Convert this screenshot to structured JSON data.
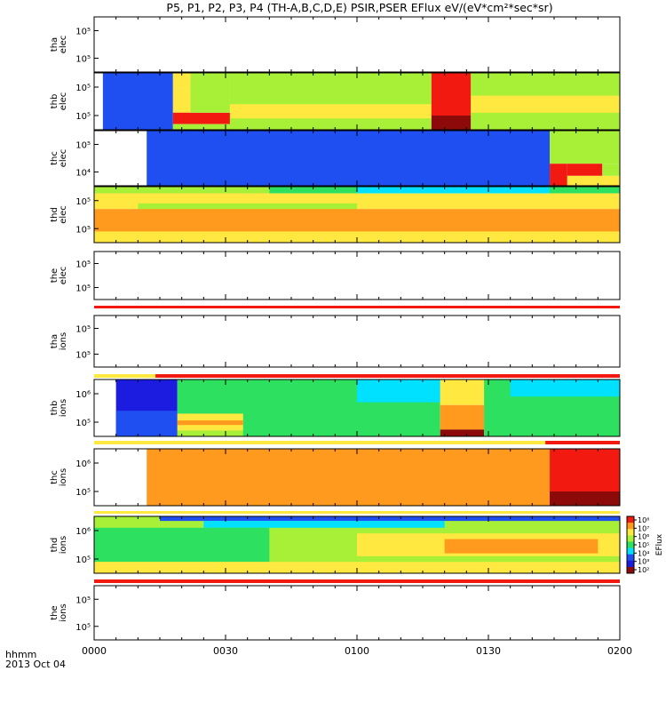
{
  "title": "P5, P1, P2, P3, P4 (TH-A,B,C,D,E) PSIR,PSER EFlux eV/(eV*cm²*sec*sr)",
  "footer": {
    "format_label": "hhmm",
    "date_label": "2013 Oct 04"
  },
  "colors": {
    "dark_blue": "#1c1ce0",
    "blue": "#1f4ff0",
    "cyan": "#00e0ff",
    "green": "#2ee060",
    "lgreen": "#a8f038",
    "yellow": "#ffe840",
    "orange": "#ff9a1e",
    "red": "#f21a10",
    "dred": "#8c0a0a"
  },
  "chart_data": {
    "type": "heatmap",
    "title": "P5, P1, P2, P3, P4 (TH-A,B,C,D,E) PSIR,PSER EFlux eV/(eV*cm²*sec*sr)",
    "x_ticks": [
      "0000",
      "0030",
      "0100",
      "0130",
      "0200"
    ],
    "x_range_minutes": [
      0,
      120
    ],
    "y_scale": "log",
    "colorbar": {
      "label": "EFlux",
      "ticks": [
        "10⁸",
        "10⁷",
        "10⁶",
        "10⁵",
        "10⁴",
        "10³",
        "10²"
      ]
    },
    "panels": [
      {
        "probe": "tha",
        "species": "elec",
        "y_ticks": [
          "10⁵",
          "10⁵"
        ],
        "data": "none"
      },
      {
        "probe": "thb",
        "species": "elec",
        "y_ticks": [
          "10⁵",
          "10⁵"
        ],
        "data": "spectrogram"
      },
      {
        "probe": "thc",
        "species": "elec",
        "y_ticks": [
          "10⁵",
          "10⁴"
        ],
        "data": "spectrogram"
      },
      {
        "probe": "thd",
        "species": "elec",
        "y_ticks": [
          "10⁵",
          "10⁵"
        ],
        "data": "spectrogram"
      },
      {
        "probe": "the",
        "species": "elec",
        "y_ticks": [
          "10⁵",
          "10⁵"
        ],
        "data": "none"
      },
      {
        "probe": "tha",
        "species": "ions",
        "y_ticks": [
          "10⁵",
          "10⁵"
        ],
        "data": "none"
      },
      {
        "probe": "thb",
        "species": "ions",
        "y_ticks": [
          "10⁶",
          "10⁵"
        ],
        "data": "spectrogram"
      },
      {
        "probe": "thc",
        "species": "ions",
        "y_ticks": [
          "10⁶",
          "10⁵"
        ],
        "data": "spectrogram"
      },
      {
        "probe": "thd",
        "species": "ions",
        "y_ticks": [
          "10⁶",
          "10⁵"
        ],
        "data": "spectrogram"
      },
      {
        "probe": "the",
        "species": "ions",
        "y_ticks": [
          "10⁵",
          "10⁵"
        ],
        "data": "none"
      }
    ],
    "flag_bars": [
      {
        "segments": [
          {
            "t0": 0,
            "t1": 120,
            "color": "red"
          }
        ]
      },
      {
        "segments": [
          {
            "t0": 0,
            "t1": 14,
            "color": "yellow"
          },
          {
            "t0": 14,
            "t1": 120,
            "color": "red"
          }
        ]
      },
      {
        "segments": [
          {
            "t0": 0,
            "t1": 103,
            "color": "yellow"
          },
          {
            "t0": 103,
            "t1": 120,
            "color": "red"
          }
        ]
      },
      {
        "segments": [
          {
            "t0": 0,
            "t1": 120,
            "color": "yellow"
          }
        ]
      },
      {
        "segments": [
          {
            "t0": 0,
            "t1": 120,
            "color": "red"
          }
        ]
      }
    ]
  }
}
